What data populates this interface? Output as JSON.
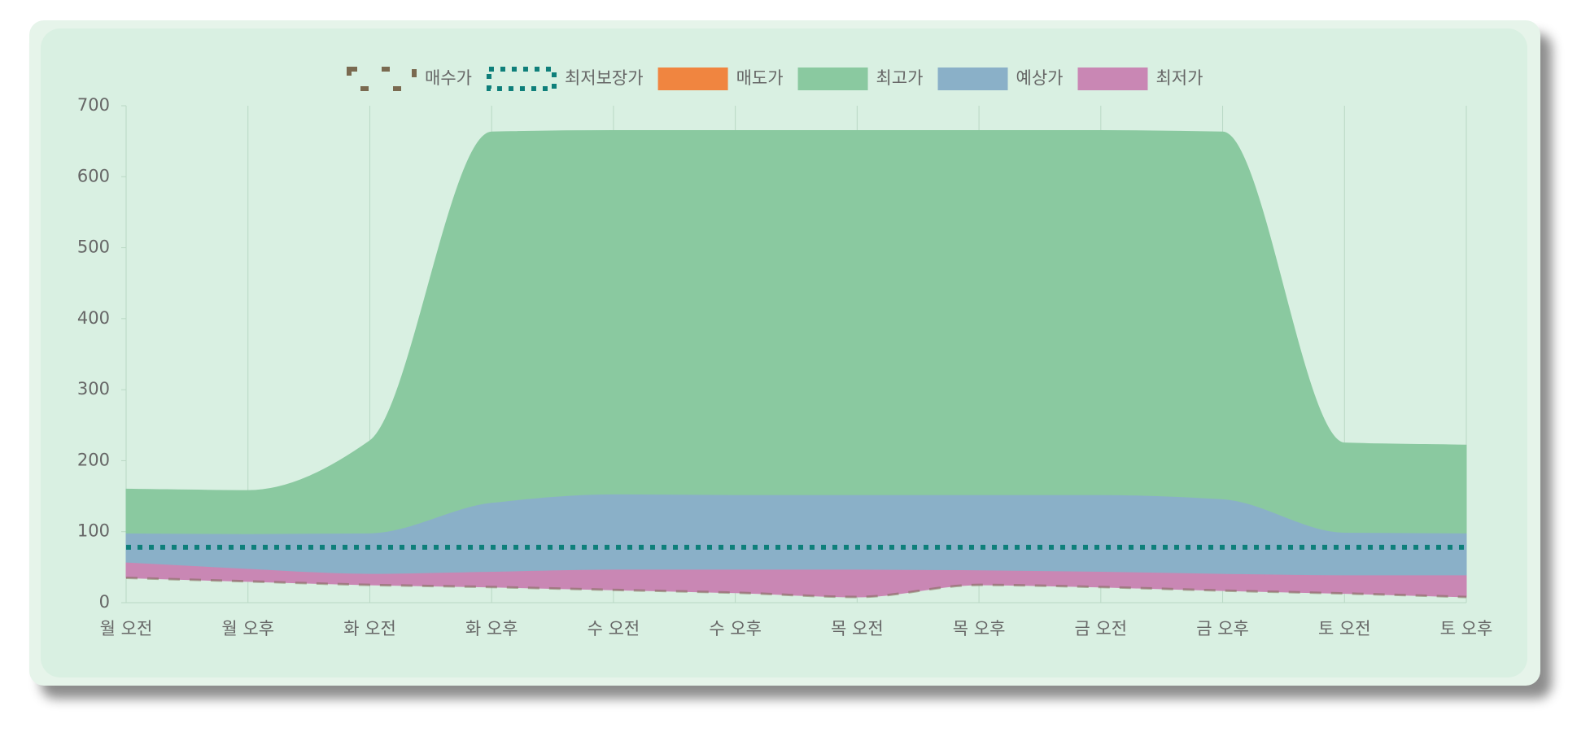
{
  "chart_data": {
    "type": "area",
    "categories": [
      "월 오전",
      "월 오후",
      "화 오전",
      "화 오후",
      "수 오전",
      "수 오후",
      "목 오전",
      "목 오후",
      "금 오전",
      "금 오후",
      "토 오전",
      "토 오후"
    ],
    "series": [
      {
        "name": "매수가",
        "color": "#7a6a50",
        "style": "dashed",
        "values": [
          35,
          30,
          25,
          22,
          18,
          14,
          8,
          25,
          22,
          17,
          13,
          8
        ]
      },
      {
        "name": "최저보장가",
        "color": "#0e7f7a",
        "style": "dotted",
        "values": [
          78,
          78,
          78,
          78,
          78,
          78,
          78,
          78,
          78,
          78,
          78,
          78
        ]
      },
      {
        "name": "매도가",
        "color": "#f08540",
        "style": "fill",
        "values": [
          null,
          null,
          null,
          null,
          null,
          null,
          null,
          null,
          null,
          null,
          null,
          null
        ]
      },
      {
        "name": "최고가",
        "color": "#8ac9a0",
        "style": "fill",
        "fill_to": 4,
        "values": [
          160,
          158,
          228,
          663,
          665,
          665,
          665,
          665,
          665,
          663,
          225,
          222
        ]
      },
      {
        "name": "예상가",
        "color": "#8ab0c8",
        "style": "fill",
        "fill_to": 5,
        "values": [
          97,
          96,
          97,
          140,
          152,
          151,
          151,
          151,
          151,
          145,
          98,
          97
        ]
      },
      {
        "name": "최저가",
        "color": "#c987b4",
        "style": "fill",
        "fill_to": 0,
        "values": [
          56,
          47,
          40,
          43,
          46,
          46,
          46,
          45,
          43,
          40,
          38,
          38
        ]
      }
    ],
    "ylim": [
      0,
      700
    ],
    "yticks": [
      0,
      100,
      200,
      300,
      400,
      500,
      600,
      700
    ],
    "grid": true,
    "legend": "top"
  }
}
